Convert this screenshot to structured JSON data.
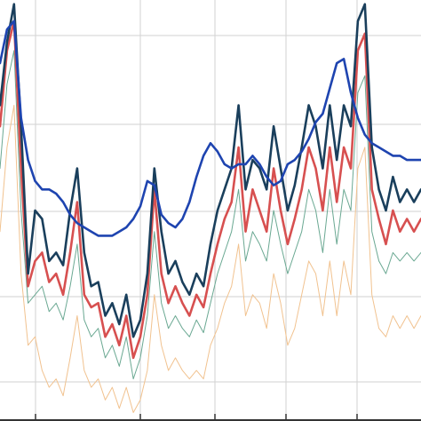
{
  "chart_data": {
    "type": "line",
    "title": "",
    "xlabel": "",
    "ylabel": "",
    "grid": true,
    "xlim": [
      0,
      120
    ],
    "ylim": [
      0,
      100
    ],
    "xgrid": [
      0,
      20,
      40,
      60,
      80,
      100,
      120
    ],
    "ygrid": [
      0,
      20,
      40,
      60,
      80,
      100
    ],
    "x": [
      0,
      2,
      4,
      6,
      8,
      10,
      12,
      14,
      16,
      18,
      20,
      22,
      24,
      26,
      28,
      30,
      32,
      34,
      36,
      38,
      40,
      42,
      44,
      46,
      48,
      50,
      52,
      54,
      56,
      58,
      60,
      62,
      64,
      66,
      68,
      70,
      72,
      74,
      76,
      78,
      80,
      82,
      84,
      86,
      88,
      90,
      92,
      94,
      96,
      98,
      100,
      102,
      104,
      106,
      108,
      110,
      112,
      114,
      116,
      118,
      120
    ],
    "series": [
      {
        "color": "#1a3f5c",
        "width": 2.6,
        "values": [
          75,
          90,
          99,
          70,
          35,
          50,
          48,
          38,
          40,
          37,
          50,
          60,
          40,
          32,
          33,
          25,
          28,
          23,
          30,
          20,
          24,
          35,
          60,
          45,
          35,
          38,
          33,
          30,
          35,
          32,
          42,
          50,
          55,
          60,
          75,
          55,
          62,
          60,
          55,
          70,
          60,
          50,
          56,
          65,
          75,
          70,
          60,
          75,
          62,
          75,
          70,
          95,
          99,
          65,
          55,
          50,
          58,
          52,
          55,
          52,
          55
        ]
      },
      {
        "color": "#d75050",
        "width": 2.6,
        "values": [
          70,
          88,
          95,
          60,
          32,
          38,
          40,
          33,
          35,
          30,
          40,
          52,
          30,
          27,
          28,
          20,
          23,
          18,
          25,
          15,
          20,
          30,
          55,
          35,
          28,
          32,
          28,
          25,
          30,
          27,
          35,
          42,
          48,
          52,
          65,
          45,
          55,
          50,
          45,
          60,
          50,
          42,
          48,
          55,
          65,
          60,
          50,
          65,
          52,
          65,
          60,
          88,
          92,
          55,
          48,
          42,
          50,
          45,
          48,
          45,
          48
        ]
      },
      {
        "color": "#6aa892",
        "width": 1,
        "values": [
          60,
          80,
          88,
          50,
          28,
          30,
          32,
          26,
          28,
          24,
          32,
          42,
          24,
          20,
          22,
          15,
          18,
          13,
          20,
          10,
          15,
          25,
          45,
          28,
          22,
          25,
          22,
          20,
          24,
          21,
          28,
          35,
          40,
          45,
          55,
          38,
          45,
          42,
          38,
          50,
          42,
          35,
          40,
          45,
          55,
          50,
          40,
          55,
          42,
          55,
          50,
          78,
          82,
          45,
          38,
          35,
          40,
          38,
          40,
          38,
          40
        ]
      },
      {
        "color": "#f1c28f",
        "width": 1,
        "values": [
          45,
          65,
          75,
          35,
          18,
          20,
          12,
          8,
          10,
          6,
          15,
          25,
          12,
          8,
          10,
          5,
          8,
          3,
          8,
          2,
          5,
          12,
          30,
          18,
          12,
          15,
          12,
          10,
          12,
          10,
          18,
          22,
          28,
          32,
          42,
          25,
          30,
          28,
          22,
          35,
          28,
          18,
          22,
          30,
          38,
          35,
          25,
          38,
          25,
          38,
          30,
          60,
          65,
          30,
          22,
          20,
          25,
          22,
          25,
          22,
          25
        ]
      },
      {
        "color": "#1e44b0",
        "width": 2.6,
        "values": [
          85,
          93,
          95,
          72,
          62,
          57,
          55,
          55,
          54,
          52,
          49,
          47,
          46,
          45,
          44,
          44,
          44,
          45,
          46,
          48,
          51,
          57,
          56,
          49,
          47,
          46,
          48,
          52,
          58,
          63,
          66,
          64,
          61,
          60,
          61,
          61,
          63,
          61,
          58,
          56,
          57,
          61,
          62,
          64,
          67,
          71,
          73,
          79,
          85,
          86,
          78,
          72,
          68,
          66,
          65,
          64,
          63,
          63,
          62,
          62,
          62
        ]
      }
    ]
  }
}
